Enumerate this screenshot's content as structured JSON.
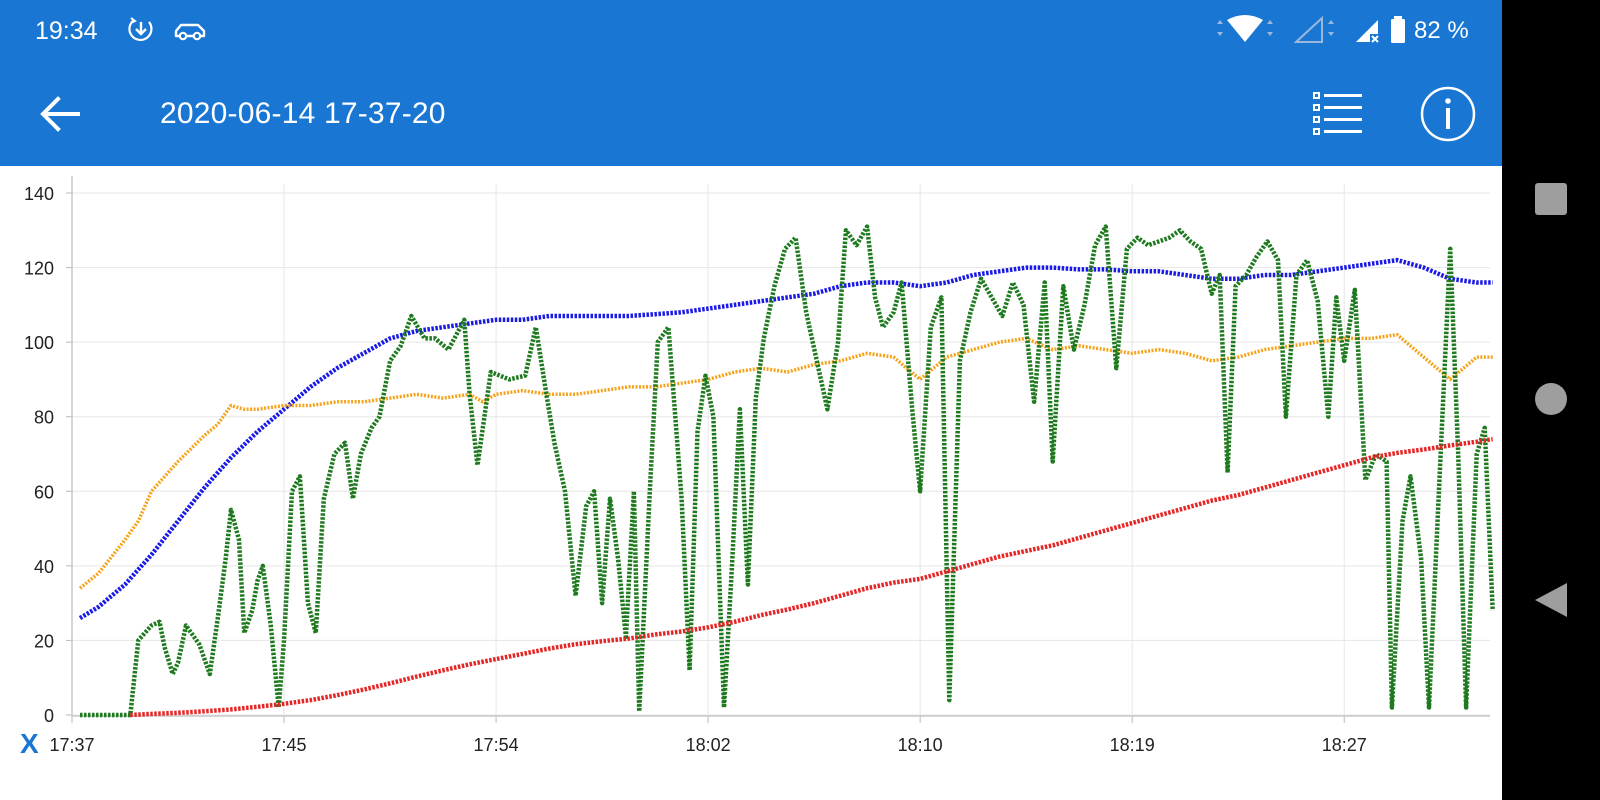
{
  "status_bar": {
    "time": "19:34",
    "battery_text": "82 %",
    "icons": [
      "download-alert-icon",
      "car-icon",
      "wifi-icon",
      "signal-empty-icon",
      "signal-x-icon",
      "battery-icon"
    ]
  },
  "app_bar": {
    "title": "2020-06-14 17-37-20",
    "back_icon": "arrow-left-icon",
    "list_icon": "list-icon",
    "info_icon": "info-icon"
  },
  "chart": {
    "axis_toggle_label": "X"
  },
  "chart_data": {
    "type": "line",
    "x_axis": {
      "ticks": [
        "17:37",
        "17:45",
        "17:54",
        "18:02",
        "18:10",
        "18:19",
        "18:27"
      ],
      "tick_minutes": [
        0,
        8,
        16,
        24,
        32,
        40,
        48
      ],
      "range_minutes": [
        0,
        53.5
      ]
    },
    "y_axis": {
      "min": 0,
      "max": 140,
      "ticks": [
        0,
        20,
        40,
        60,
        80,
        100,
        120,
        140
      ]
    },
    "grid": true,
    "series": [
      {
        "color": "#1a1ae6",
        "style": "dotted-thick",
        "points": [
          [
            0.3,
            26
          ],
          [
            1,
            29
          ],
          [
            2,
            35
          ],
          [
            3,
            43
          ],
          [
            4,
            52
          ],
          [
            5,
            61
          ],
          [
            6,
            69
          ],
          [
            7,
            76
          ],
          [
            8,
            82
          ],
          [
            9,
            88
          ],
          [
            10,
            93
          ],
          [
            11,
            97
          ],
          [
            12,
            101
          ],
          [
            13,
            103
          ],
          [
            14,
            104
          ],
          [
            15,
            105
          ],
          [
            16,
            106
          ],
          [
            17,
            106
          ],
          [
            18,
            107
          ],
          [
            19,
            107
          ],
          [
            20,
            107
          ],
          [
            21,
            107
          ],
          [
            22,
            107.5
          ],
          [
            23,
            108
          ],
          [
            24,
            109
          ],
          [
            25,
            110
          ],
          [
            26,
            111
          ],
          [
            27,
            112
          ],
          [
            28,
            113
          ],
          [
            29,
            115
          ],
          [
            30,
            116
          ],
          [
            31,
            116
          ],
          [
            32,
            115
          ],
          [
            33,
            116
          ],
          [
            34,
            118
          ],
          [
            35,
            119
          ],
          [
            36,
            120
          ],
          [
            37,
            120
          ],
          [
            38,
            119.5
          ],
          [
            39,
            119.5
          ],
          [
            40,
            119
          ],
          [
            41,
            119
          ],
          [
            42,
            118
          ],
          [
            43,
            117
          ],
          [
            44,
            117
          ],
          [
            45,
            118
          ],
          [
            46,
            118
          ],
          [
            47,
            119
          ],
          [
            48,
            120
          ],
          [
            49,
            121
          ],
          [
            50,
            122
          ],
          [
            51,
            120
          ],
          [
            52,
            117
          ],
          [
            53,
            116
          ],
          [
            53.6,
            116
          ]
        ]
      },
      {
        "color": "#f5a31a",
        "style": "dotted",
        "points": [
          [
            0.3,
            34
          ],
          [
            1,
            38
          ],
          [
            2,
            47
          ],
          [
            2.5,
            52
          ],
          [
            3,
            60
          ],
          [
            4,
            68
          ],
          [
            5,
            75
          ],
          [
            5.5,
            78
          ],
          [
            6,
            83
          ],
          [
            6.5,
            82
          ],
          [
            7,
            82
          ],
          [
            8,
            83
          ],
          [
            9,
            83
          ],
          [
            10,
            84
          ],
          [
            11,
            84
          ],
          [
            12,
            85
          ],
          [
            13,
            86
          ],
          [
            14,
            85
          ],
          [
            15,
            86
          ],
          [
            15.5,
            84
          ],
          [
            16,
            86
          ],
          [
            17,
            87
          ],
          [
            18,
            86
          ],
          [
            19,
            86
          ],
          [
            20,
            87
          ],
          [
            21,
            88
          ],
          [
            22,
            88
          ],
          [
            23,
            89
          ],
          [
            24,
            90
          ],
          [
            25,
            92
          ],
          [
            26,
            93
          ],
          [
            27,
            92
          ],
          [
            28,
            94
          ],
          [
            29,
            95
          ],
          [
            30,
            97
          ],
          [
            31,
            96
          ],
          [
            32,
            90
          ],
          [
            33,
            96
          ],
          [
            34,
            98
          ],
          [
            35,
            100
          ],
          [
            36,
            101
          ],
          [
            37,
            98
          ],
          [
            38,
            99
          ],
          [
            39,
            98
          ],
          [
            40,
            97
          ],
          [
            41,
            98
          ],
          [
            42,
            97
          ],
          [
            43,
            95
          ],
          [
            44,
            96
          ],
          [
            45,
            98
          ],
          [
            46,
            99
          ],
          [
            47,
            100
          ],
          [
            48,
            101
          ],
          [
            49,
            101
          ],
          [
            50,
            102
          ],
          [
            51,
            96
          ],
          [
            52,
            90
          ],
          [
            53,
            96
          ],
          [
            53.6,
            96
          ]
        ]
      },
      {
        "color": "#1f7a1f",
        "style": "dotted-thick",
        "points": [
          [
            0.3,
            0
          ],
          [
            1.5,
            0
          ],
          [
            2.2,
            0
          ],
          [
            2.5,
            20
          ],
          [
            3,
            24
          ],
          [
            3.3,
            25
          ],
          [
            3.5,
            18
          ],
          [
            3.8,
            11
          ],
          [
            4,
            14
          ],
          [
            4.3,
            24
          ],
          [
            4.8,
            19
          ],
          [
            5.2,
            11
          ],
          [
            5.5,
            26
          ],
          [
            5.8,
            42
          ],
          [
            6,
            55
          ],
          [
            6.3,
            47
          ],
          [
            6.5,
            22
          ],
          [
            6.8,
            28
          ],
          [
            7,
            36
          ],
          [
            7.2,
            40
          ],
          [
            7.5,
            24
          ],
          [
            7.8,
            2
          ],
          [
            8,
            20
          ],
          [
            8.3,
            60
          ],
          [
            8.6,
            64
          ],
          [
            8.9,
            30
          ],
          [
            9.2,
            22
          ],
          [
            9.5,
            58
          ],
          [
            9.9,
            70
          ],
          [
            10.3,
            73
          ],
          [
            10.6,
            58
          ],
          [
            10.9,
            70
          ],
          [
            11.3,
            77
          ],
          [
            11.6,
            80
          ],
          [
            12,
            95
          ],
          [
            12.4,
            99
          ],
          [
            12.8,
            107
          ],
          [
            13.3,
            101
          ],
          [
            13.7,
            101
          ],
          [
            14.2,
            98
          ],
          [
            14.8,
            106
          ],
          [
            15,
            86
          ],
          [
            15.3,
            67
          ],
          [
            15.8,
            92
          ],
          [
            16.5,
            90
          ],
          [
            17.1,
            91
          ],
          [
            17.5,
            104
          ],
          [
            17.9,
            86
          ],
          [
            18.2,
            73
          ],
          [
            18.6,
            60
          ],
          [
            19,
            32
          ],
          [
            19.4,
            56
          ],
          [
            19.7,
            60
          ],
          [
            20,
            30
          ],
          [
            20.3,
            58
          ],
          [
            20.6,
            42
          ],
          [
            20.9,
            21
          ],
          [
            21.2,
            60
          ],
          [
            21.4,
            1
          ],
          [
            21.8,
            60
          ],
          [
            22.1,
            100
          ],
          [
            22.5,
            104
          ],
          [
            23,
            58
          ],
          [
            23.3,
            12
          ],
          [
            23.6,
            76
          ],
          [
            23.9,
            91
          ],
          [
            24.2,
            80
          ],
          [
            24.6,
            2
          ],
          [
            24.9,
            40
          ],
          [
            25.2,
            82
          ],
          [
            25.5,
            35
          ],
          [
            25.8,
            85
          ],
          [
            26.1,
            101
          ],
          [
            26.5,
            115
          ],
          [
            26.9,
            125
          ],
          [
            27.3,
            128
          ],
          [
            27.7,
            108
          ],
          [
            28.1,
            95
          ],
          [
            28.5,
            82
          ],
          [
            28.9,
            100
          ],
          [
            29.2,
            130
          ],
          [
            29.6,
            126
          ],
          [
            30,
            131
          ],
          [
            30.3,
            112
          ],
          [
            30.6,
            104
          ],
          [
            31,
            108
          ],
          [
            31.3,
            116
          ],
          [
            31.7,
            82
          ],
          [
            32,
            60
          ],
          [
            32.4,
            104
          ],
          [
            32.8,
            112
          ],
          [
            33.1,
            4
          ],
          [
            33.5,
            95
          ],
          [
            33.9,
            108
          ],
          [
            34.3,
            117
          ],
          [
            34.7,
            112
          ],
          [
            35.1,
            107
          ],
          [
            35.5,
            116
          ],
          [
            35.9,
            110
          ],
          [
            36.3,
            84
          ],
          [
            36.7,
            116
          ],
          [
            37,
            68
          ],
          [
            37.4,
            115
          ],
          [
            37.8,
            98
          ],
          [
            38.2,
            110
          ],
          [
            38.6,
            126
          ],
          [
            39,
            131
          ],
          [
            39.4,
            93
          ],
          [
            39.8,
            125
          ],
          [
            40.2,
            128
          ],
          [
            40.6,
            126
          ],
          [
            41,
            127
          ],
          [
            41.4,
            128
          ],
          [
            41.8,
            130
          ],
          [
            42.2,
            127
          ],
          [
            42.6,
            125
          ],
          [
            43,
            113
          ],
          [
            43.3,
            118
          ],
          [
            43.6,
            65
          ],
          [
            43.9,
            115
          ],
          [
            44.3,
            118
          ],
          [
            44.7,
            123
          ],
          [
            45.1,
            127
          ],
          [
            45.5,
            122
          ],
          [
            45.8,
            80
          ],
          [
            46.2,
            118
          ],
          [
            46.6,
            122
          ],
          [
            47,
            111
          ],
          [
            47.4,
            80
          ],
          [
            47.7,
            112
          ],
          [
            48,
            95
          ],
          [
            48.4,
            114
          ],
          [
            48.8,
            63
          ],
          [
            49.2,
            70
          ],
          [
            49.6,
            68
          ],
          [
            49.8,
            2
          ],
          [
            50.2,
            52
          ],
          [
            50.5,
            64
          ],
          [
            50.9,
            42
          ],
          [
            51.2,
            2
          ],
          [
            51.6,
            64
          ],
          [
            52,
            125
          ],
          [
            52.3,
            70
          ],
          [
            52.6,
            2
          ],
          [
            53,
            70
          ],
          [
            53.3,
            77
          ],
          [
            53.6,
            28
          ]
        ]
      },
      {
        "color": "#e62626",
        "style": "dotted-thick",
        "points": [
          [
            2.2,
            0
          ],
          [
            3,
            0.3
          ],
          [
            4,
            0.6
          ],
          [
            5,
            1
          ],
          [
            6,
            1.5
          ],
          [
            7,
            2.2
          ],
          [
            8,
            3
          ],
          [
            9,
            4
          ],
          [
            10,
            5.3
          ],
          [
            11,
            6.8
          ],
          [
            12,
            8.5
          ],
          [
            13,
            10.3
          ],
          [
            14,
            12
          ],
          [
            15,
            13.6
          ],
          [
            16,
            15
          ],
          [
            17,
            16.4
          ],
          [
            18,
            17.8
          ],
          [
            19,
            19
          ],
          [
            20,
            19.8
          ],
          [
            21,
            20.5
          ],
          [
            22,
            21.6
          ],
          [
            23,
            22.4
          ],
          [
            24,
            23.5
          ],
          [
            25,
            25
          ],
          [
            26,
            26.8
          ],
          [
            27,
            28.3
          ],
          [
            28,
            30
          ],
          [
            29,
            32
          ],
          [
            30,
            34
          ],
          [
            31,
            35.5
          ],
          [
            32,
            36.5
          ],
          [
            33,
            38.5
          ],
          [
            34,
            40.5
          ],
          [
            35,
            42.5
          ],
          [
            36,
            44
          ],
          [
            37,
            45.5
          ],
          [
            38,
            47.5
          ],
          [
            39,
            49.5
          ],
          [
            40,
            51.5
          ],
          [
            41,
            53.5
          ],
          [
            42,
            55.5
          ],
          [
            43,
            57.5
          ],
          [
            44,
            59
          ],
          [
            45,
            61
          ],
          [
            46,
            63
          ],
          [
            47,
            65
          ],
          [
            48,
            67
          ],
          [
            49,
            69
          ],
          [
            50,
            70.3
          ],
          [
            51,
            71.2
          ],
          [
            52,
            72.3
          ],
          [
            53,
            73.3
          ],
          [
            53.6,
            74
          ]
        ]
      }
    ]
  }
}
